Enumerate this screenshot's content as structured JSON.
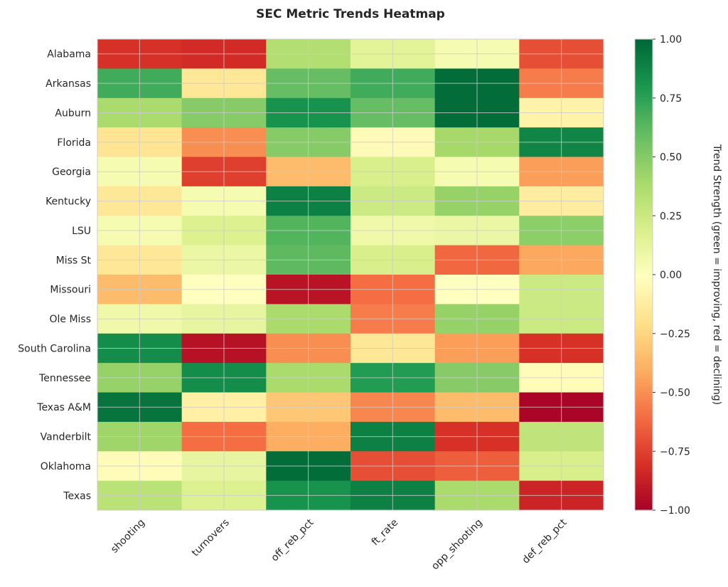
{
  "chart_data": {
    "type": "heatmap",
    "title": "SEC Metric Trends Heatmap",
    "colormap": "RdYlGn",
    "colorbar": {
      "label": "Trend Strength (green = improving, red = declining)",
      "range": [
        -1.0,
        1.0
      ],
      "ticks": [
        "1.00",
        "0.75",
        "0.50",
        "0.25",
        "0.00",
        "−0.25",
        "−0.50",
        "−0.75",
        "−1.00"
      ],
      "tick_values": [
        1,
        0.75,
        0.5,
        0.25,
        0,
        -0.25,
        -0.5,
        -0.75,
        -1
      ]
    },
    "columns": [
      "shooting",
      "turnovers",
      "off_reb_pct",
      "ft_rate",
      "opp_shooting",
      "def_reb_pct"
    ],
    "rows": [
      "Alabama",
      "Arkansas",
      "Auburn",
      "Florida",
      "Georgia",
      "Kentucky",
      "LSU",
      "Miss St",
      "Missouri",
      "Ole Miss",
      "South Carolina",
      "Tennessee",
      "Texas A&M",
      "Vanderbilt",
      "Oklahoma",
      "Texas"
    ],
    "values": [
      [
        -0.8,
        -0.82,
        0.35,
        0.15,
        0.05,
        -0.7
      ],
      [
        0.7,
        -0.15,
        0.6,
        0.7,
        0.98,
        -0.55
      ],
      [
        0.38,
        0.5,
        0.82,
        0.6,
        0.98,
        -0.08
      ],
      [
        -0.17,
        -0.5,
        0.5,
        -0.03,
        0.4,
        0.88
      ],
      [
        0.05,
        -0.75,
        -0.35,
        0.2,
        0.05,
        -0.45
      ],
      [
        -0.15,
        0.05,
        0.9,
        0.25,
        0.45,
        -0.12
      ],
      [
        0.05,
        0.18,
        0.65,
        0.08,
        0.1,
        0.48
      ],
      [
        -0.15,
        0.1,
        0.62,
        0.2,
        -0.62,
        -0.42
      ],
      [
        -0.35,
        0.0,
        -0.92,
        -0.6,
        0.0,
        0.25
      ],
      [
        0.08,
        0.12,
        0.38,
        -0.55,
        0.45,
        0.25
      ],
      [
        0.85,
        -0.93,
        -0.5,
        -0.15,
        -0.45,
        -0.8
      ],
      [
        0.45,
        0.85,
        0.38,
        0.78,
        0.5,
        -0.02
      ],
      [
        0.95,
        -0.1,
        -0.3,
        -0.52,
        -0.35,
        -0.98
      ],
      [
        0.42,
        -0.6,
        -0.4,
        0.9,
        -0.8,
        0.3
      ],
      [
        -0.02,
        0.12,
        0.98,
        -0.7,
        -0.65,
        0.2
      ],
      [
        0.32,
        0.18,
        0.82,
        0.9,
        0.38,
        -0.85
      ]
    ],
    "grid": true
  }
}
